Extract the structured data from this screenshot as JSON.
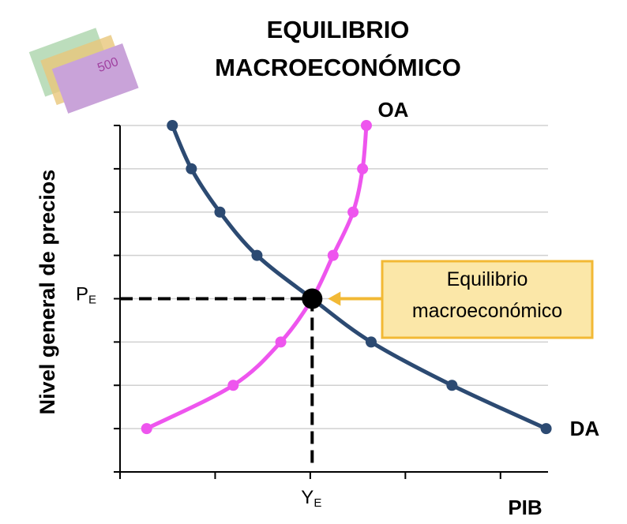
{
  "chart_data": {
    "type": "line",
    "title": "EQUILIBRIO MACROECONÓMICO",
    "y_label": "Nivel general de precios",
    "x_label": "PIB",
    "series": [
      {
        "name": "DA",
        "color": "#2c4a72",
        "x": [
          0.55,
          0.75,
          1.05,
          1.44,
          2.02,
          2.64,
          3.49,
          4.48
        ],
        "values": [
          8,
          7,
          6,
          5,
          4,
          3,
          2,
          1
        ]
      },
      {
        "name": "OA",
        "color": "#ee55ee",
        "x": [
          0.28,
          1.19,
          1.69,
          2.02,
          2.24,
          2.45,
          2.55,
          2.59
        ],
        "values": [
          1,
          2,
          3,
          4,
          5,
          6,
          7,
          8
        ]
      }
    ],
    "equilibrium": {
      "x": 2.02,
      "y": 4,
      "label": "Equilibrio macroeconómico",
      "color": "#f2b935"
    },
    "y_marker": {
      "value": 4,
      "label": "P",
      "sub": "E"
    },
    "x_marker": {
      "value": 2.02,
      "label": "Y",
      "sub": "E"
    },
    "xlim": [
      0,
      4.5
    ],
    "ylim": [
      0,
      8
    ],
    "xticks": [
      0,
      1,
      2,
      3,
      4
    ],
    "yticks": [
      0,
      1,
      2,
      3,
      4,
      5,
      6,
      7,
      8
    ],
    "grid": true
  }
}
